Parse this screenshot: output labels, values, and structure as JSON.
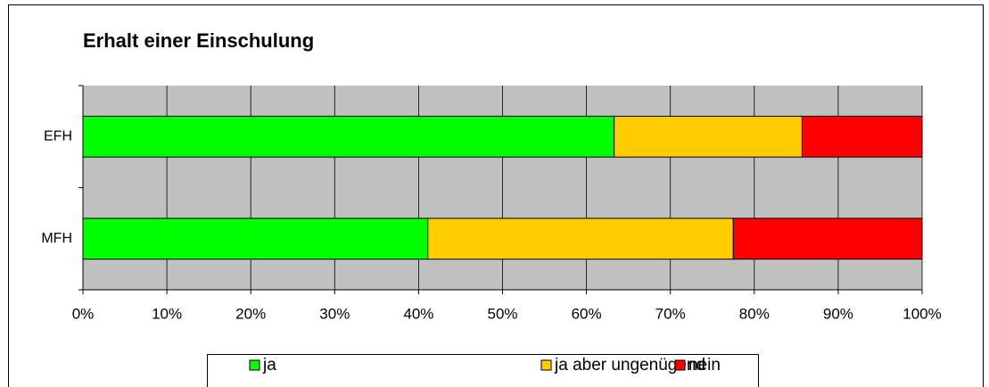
{
  "chart_data": {
    "type": "stacked-bar-horizontal",
    "title": "Erhalt einer Einschulung",
    "categories": [
      "EFH",
      "MFH"
    ],
    "series": [
      {
        "name": "ja",
        "color": "#00ff00",
        "values": [
          63.3,
          41.1
        ]
      },
      {
        "name": "ja aber ungenügend",
        "color": "#ffcc00",
        "values": [
          22.4,
          36.4
        ]
      },
      {
        "name": "nein",
        "color": "#ff0000",
        "values": [
          14.3,
          22.5
        ]
      }
    ],
    "xlim": [
      0,
      100
    ],
    "xticks": [
      {
        "value": 0,
        "label": "0%"
      },
      {
        "value": 10,
        "label": "10%"
      },
      {
        "value": 20,
        "label": "20%"
      },
      {
        "value": 30,
        "label": "30%"
      },
      {
        "value": 40,
        "label": "40%"
      },
      {
        "value": 50,
        "label": "50%"
      },
      {
        "value": 60,
        "label": "60%"
      },
      {
        "value": 70,
        "label": "70%"
      },
      {
        "value": 80,
        "label": "80%"
      },
      {
        "value": 90,
        "label": "90%"
      },
      {
        "value": 100,
        "label": "100%"
      }
    ],
    "grid": true,
    "legend": "bottom"
  }
}
